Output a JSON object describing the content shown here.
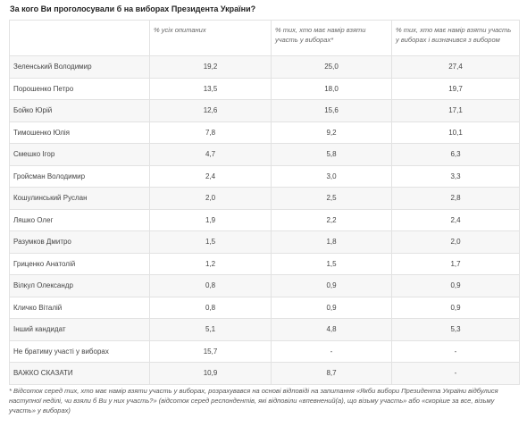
{
  "title": "За кого Ви проголосували б на виборах Президента України?",
  "columns": [
    "% усіх опитаних",
    "% тих, хто має намір взяти участь у виборах*",
    "% тих, хто має намір взяти участь у виборах і визначився з вибором"
  ],
  "rows": [
    {
      "name": "Зеленський Володимир",
      "all": "19,2",
      "intend": "25,0",
      "decided": "27,4"
    },
    {
      "name": "Порошенко Петро",
      "all": "13,5",
      "intend": "18,0",
      "decided": "19,7"
    },
    {
      "name": "Бойко Юрій",
      "all": "12,6",
      "intend": "15,6",
      "decided": "17,1"
    },
    {
      "name": "Тимошенко Юлія",
      "all": "7,8",
      "intend": "9,2",
      "decided": "10,1"
    },
    {
      "name": "Смешко Ігор",
      "all": "4,7",
      "intend": "5,8",
      "decided": "6,3"
    },
    {
      "name": "Гройсман Володимир",
      "all": "2,4",
      "intend": "3,0",
      "decided": "3,3"
    },
    {
      "name": "Кошулинський Руслан",
      "all": "2,0",
      "intend": "2,5",
      "decided": "2,8"
    },
    {
      "name": "Ляшко Олег",
      "all": "1,9",
      "intend": "2,2",
      "decided": "2,4"
    },
    {
      "name": "Разумков Дмитро",
      "all": "1,5",
      "intend": "1,8",
      "decided": "2,0"
    },
    {
      "name": "Гриценко Анатолій",
      "all": "1,2",
      "intend": "1,5",
      "decided": "1,7"
    },
    {
      "name": "Вілкул Олександр",
      "all": "0,8",
      "intend": "0,9",
      "decided": "0,9"
    },
    {
      "name": "Кличко Віталій",
      "all": "0,8",
      "intend": "0,9",
      "decided": "0,9"
    },
    {
      "name": "Інший кандидат",
      "all": "5,1",
      "intend": "4,8",
      "decided": "5,3"
    },
    {
      "name": "Не братиму участі у виборах",
      "all": "15,7",
      "intend": "-",
      "decided": "-"
    },
    {
      "name": "ВАЖКО СКАЗАТИ",
      "all": "10,9",
      "intend": "8,7",
      "decided": "-"
    }
  ],
  "footnote": "* Відсоток серед тих, хто має намір взяти участь у виборах, розрахувався на основі відповіді на запитання «Якби вибори Президента України відбулися наступної неділі, чи взяли б Ви у них участь?» (відсоток серед респондентів, які відповіли «впевнений(а), що візьму участь» або «скоріше за все, візьму участь» у виборах)"
}
